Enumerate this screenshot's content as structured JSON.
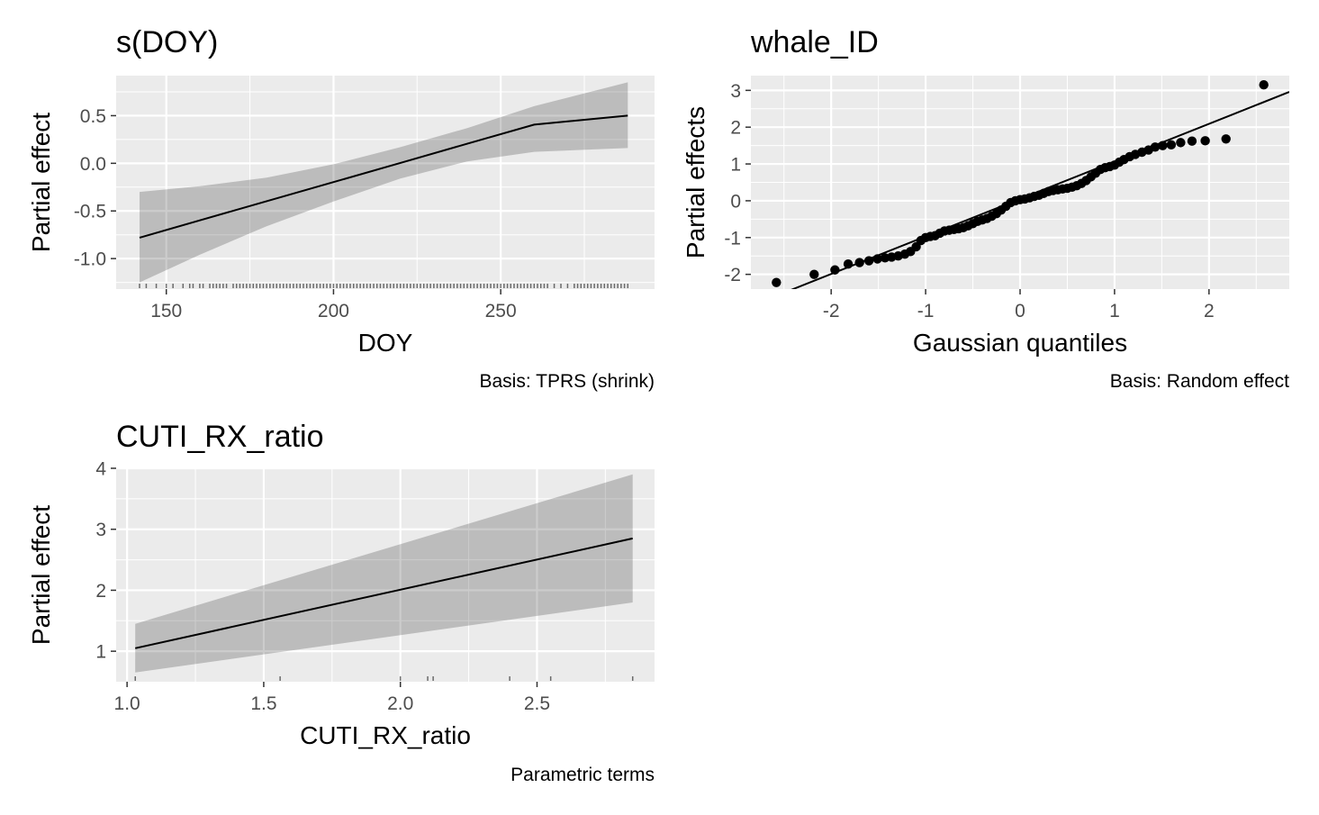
{
  "chart_data": [
    {
      "type": "line",
      "title": "s(DOY)",
      "xlabel": "DOY",
      "ylabel": "Partial effect",
      "caption": "Basis: TPRS (shrink)",
      "xlim": [
        135,
        296
      ],
      "ylim": [
        -1.32,
        0.92
      ],
      "xticks": [
        150,
        200,
        250
      ],
      "yticks": [
        -1.0,
        -0.5,
        0.0,
        0.5
      ],
      "ytick_labels": [
        "-1.0",
        "-0.5",
        "0.0",
        "0.5"
      ],
      "series": [
        {
          "x": [
            142,
            160,
            180,
            200,
            220,
            240,
            260,
            288
          ],
          "y": [
            -0.78,
            -0.599,
            -0.398,
            -0.197,
            0.004,
            0.205,
            0.406,
            0.5
          ],
          "lower": [
            -1.25,
            -0.96,
            -0.66,
            -0.4,
            -0.16,
            0.02,
            0.12,
            0.16
          ],
          "upper": [
            -0.3,
            -0.24,
            -0.15,
            -0.01,
            0.17,
            0.37,
            0.6,
            0.85
          ]
        }
      ],
      "rug": [
        142,
        144,
        147,
        150,
        152,
        155,
        157,
        158,
        160,
        161,
        163,
        164,
        165,
        166,
        167,
        168,
        170,
        171,
        172,
        173,
        174,
        175,
        176,
        177,
        178,
        179,
        180,
        181,
        182,
        183,
        184,
        185,
        186,
        187,
        188,
        189,
        190,
        191,
        192,
        193,
        194,
        195,
        196,
        197,
        198,
        199,
        200,
        201,
        202,
        203,
        204,
        205,
        206,
        207,
        208,
        209,
        210,
        211,
        212,
        213,
        214,
        215,
        216,
        217,
        218,
        219,
        220,
        221,
        222,
        223,
        224,
        225,
        226,
        227,
        228,
        229,
        230,
        231,
        232,
        233,
        234,
        235,
        236,
        237,
        238,
        239,
        240,
        241,
        242,
        243,
        244,
        245,
        246,
        247,
        248,
        249,
        250,
        251,
        252,
        253,
        254,
        255,
        256,
        257,
        258,
        259,
        260,
        261,
        262,
        263,
        264,
        266,
        268,
        270,
        272,
        273,
        274,
        275,
        276,
        277,
        278,
        279,
        280,
        281,
        282,
        283,
        284,
        285,
        286,
        287,
        288
      ],
      "grid": true
    },
    {
      "type": "scatter",
      "title": "whale_ID",
      "xlabel": "Gaussian quantiles",
      "ylabel": "Partial effects",
      "caption": "Basis: Random effect",
      "xlim": [
        -2.85,
        2.85
      ],
      "ylim": [
        -2.4,
        3.4
      ],
      "xticks": [
        -2,
        -1,
        0,
        1,
        2
      ],
      "yticks": [
        -2,
        -1,
        0,
        1,
        2,
        3
      ],
      "reference_line": {
        "intercept": 0.05,
        "slope": 1.02
      },
      "points": [
        {
          "x": -2.58,
          "y": -2.22
        },
        {
          "x": -2.18,
          "y": -2.0
        },
        {
          "x": -1.96,
          "y": -1.88
        },
        {
          "x": -1.82,
          "y": -1.72
        },
        {
          "x": -1.7,
          "y": -1.68
        },
        {
          "x": -1.6,
          "y": -1.63
        },
        {
          "x": -1.51,
          "y": -1.58
        },
        {
          "x": -1.43,
          "y": -1.55
        },
        {
          "x": -1.36,
          "y": -1.53
        },
        {
          "x": -1.29,
          "y": -1.5
        },
        {
          "x": -1.22,
          "y": -1.45
        },
        {
          "x": -1.16,
          "y": -1.38
        },
        {
          "x": -1.1,
          "y": -1.25
        },
        {
          "x": -1.05,
          "y": -1.08
        },
        {
          "x": -1.0,
          "y": -1.0
        },
        {
          "x": -0.95,
          "y": -0.97
        },
        {
          "x": -0.9,
          "y": -0.95
        },
        {
          "x": -0.85,
          "y": -0.88
        },
        {
          "x": -0.8,
          "y": -0.82
        },
        {
          "x": -0.75,
          "y": -0.8
        },
        {
          "x": -0.7,
          "y": -0.78
        },
        {
          "x": -0.65,
          "y": -0.76
        },
        {
          "x": -0.6,
          "y": -0.73
        },
        {
          "x": -0.55,
          "y": -0.68
        },
        {
          "x": -0.5,
          "y": -0.62
        },
        {
          "x": -0.45,
          "y": -0.56
        },
        {
          "x": -0.4,
          "y": -0.52
        },
        {
          "x": -0.35,
          "y": -0.48
        },
        {
          "x": -0.3,
          "y": -0.42
        },
        {
          "x": -0.25,
          "y": -0.35
        },
        {
          "x": -0.2,
          "y": -0.25
        },
        {
          "x": -0.15,
          "y": -0.15
        },
        {
          "x": -0.1,
          "y": -0.05
        },
        {
          "x": -0.05,
          "y": 0.0
        },
        {
          "x": 0.0,
          "y": 0.03
        },
        {
          "x": 0.05,
          "y": 0.05
        },
        {
          "x": 0.1,
          "y": 0.08
        },
        {
          "x": 0.15,
          "y": 0.12
        },
        {
          "x": 0.2,
          "y": 0.15
        },
        {
          "x": 0.25,
          "y": 0.2
        },
        {
          "x": 0.3,
          "y": 0.25
        },
        {
          "x": 0.35,
          "y": 0.28
        },
        {
          "x": 0.4,
          "y": 0.3
        },
        {
          "x": 0.45,
          "y": 0.32
        },
        {
          "x": 0.5,
          "y": 0.34
        },
        {
          "x": 0.55,
          "y": 0.37
        },
        {
          "x": 0.6,
          "y": 0.41
        },
        {
          "x": 0.65,
          "y": 0.47
        },
        {
          "x": 0.7,
          "y": 0.55
        },
        {
          "x": 0.75,
          "y": 0.65
        },
        {
          "x": 0.8,
          "y": 0.75
        },
        {
          "x": 0.85,
          "y": 0.85
        },
        {
          "x": 0.9,
          "y": 0.9
        },
        {
          "x": 0.95,
          "y": 0.93
        },
        {
          "x": 1.0,
          "y": 0.97
        },
        {
          "x": 1.05,
          "y": 1.05
        },
        {
          "x": 1.1,
          "y": 1.12
        },
        {
          "x": 1.16,
          "y": 1.2
        },
        {
          "x": 1.22,
          "y": 1.26
        },
        {
          "x": 1.29,
          "y": 1.32
        },
        {
          "x": 1.36,
          "y": 1.38
        },
        {
          "x": 1.43,
          "y": 1.46
        },
        {
          "x": 1.51,
          "y": 1.5
        },
        {
          "x": 1.6,
          "y": 1.52
        },
        {
          "x": 1.7,
          "y": 1.58
        },
        {
          "x": 1.82,
          "y": 1.62
        },
        {
          "x": 1.96,
          "y": 1.63
        },
        {
          "x": 2.18,
          "y": 1.68
        },
        {
          "x": 2.58,
          "y": 3.15
        }
      ],
      "grid": true
    },
    {
      "type": "line",
      "title": "CUTI_RX_ratio",
      "xlabel": "CUTI_RX_ratio",
      "ylabel": "Partial effect",
      "caption": "Parametric terms",
      "xlim": [
        0.96,
        2.93
      ],
      "ylim": [
        0.5,
        4.0
      ],
      "xticks": [
        1.0,
        1.5,
        2.0,
        2.5
      ],
      "xtick_labels": [
        "1.0",
        "1.5",
        "2.0",
        "2.5"
      ],
      "yticks": [
        1,
        2,
        3,
        4
      ],
      "series": [
        {
          "x": [
            1.03,
            2.85
          ],
          "y": [
            1.05,
            2.85
          ],
          "lower": [
            0.65,
            1.8
          ],
          "upper": [
            1.45,
            3.9
          ]
        }
      ],
      "rug": [
        1.03,
        1.56,
        2.0,
        2.1,
        2.12,
        2.4,
        2.55,
        2.85
      ],
      "grid": true
    }
  ]
}
